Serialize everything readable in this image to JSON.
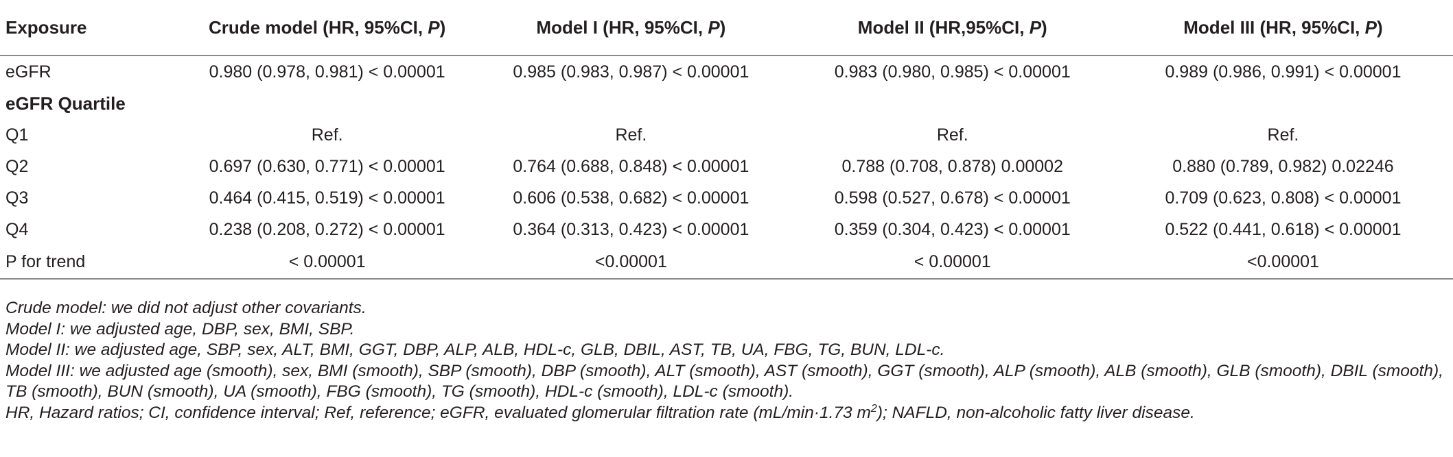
{
  "table": {
    "headers": {
      "exposure": "Exposure",
      "crude": {
        "pre": "Crude model (HR, 95%CI, ",
        "ital": "P",
        "post": ")"
      },
      "m1": {
        "pre": "Model I (HR, 95%CI, ",
        "ital": "P",
        "post": ")"
      },
      "m2": {
        "pre": "Model II (HR,95%CI, ",
        "ital": "P",
        "post": ")"
      },
      "m3": {
        "pre": "Model III (HR, 95%CI, ",
        "ital": "P",
        "post": ")"
      }
    },
    "rows": {
      "egfr": {
        "label": "eGFR",
        "crude": "0.980 (0.978, 0.981) < 0.00001",
        "m1": "0.985 (0.983, 0.987) < 0.00001",
        "m2": "0.983 (0.980, 0.985) < 0.00001",
        "m3": "0.989 (0.986, 0.991) < 0.00001"
      },
      "quartile_heading": "eGFR Quartile",
      "q1": {
        "label": "Q1",
        "crude": "Ref.",
        "m1": "Ref.",
        "m2": "Ref.",
        "m3": "Ref."
      },
      "q2": {
        "label": "Q2",
        "crude": "0.697 (0.630, 0.771) < 0.00001",
        "m1": "0.764 (0.688, 0.848) < 0.00001",
        "m2": "0.788 (0.708, 0.878) 0.00002",
        "m3": "0.880 (0.789, 0.982) 0.02246"
      },
      "q3": {
        "label": "Q3",
        "crude": "0.464 (0.415, 0.519) < 0.00001",
        "m1": "0.606 (0.538, 0.682) < 0.00001",
        "m2": "0.598 (0.527, 0.678) < 0.00001",
        "m3": "0.709 (0.623, 0.808) < 0.00001"
      },
      "q4": {
        "label": "Q4",
        "crude": "0.238 (0.208, 0.272) < 0.00001",
        "m1": "0.364 (0.313, 0.423) < 0.00001",
        "m2": "0.359 (0.304, 0.423) < 0.00001",
        "m3": "0.522 (0.441, 0.618) < 0.00001"
      },
      "trend": {
        "label": "P for trend",
        "crude": "< 0.00001",
        "m1": "<0.00001",
        "m2": "< 0.00001",
        "m3": "<0.00001"
      }
    }
  },
  "notes": {
    "crude": "Crude model: we did not adjust other covariants.",
    "m1": "Model I: we adjusted age, DBP, sex, BMI, SBP.",
    "m2": "Model II: we adjusted age, SBP, sex, ALT, BMI, GGT, DBP, ALP, ALB, HDL-c, GLB, DBIL, AST, TB, UA, FBG, TG, BUN, LDL-c.",
    "m3": "Model III: we adjusted age (smooth), sex, BMI (smooth), SBP (smooth), DBP (smooth), ALT (smooth), AST (smooth), GGT (smooth), ALP (smooth), ALB (smooth), GLB (smooth), DBIL (smooth), TB (smooth), BUN (smooth), UA (smooth), FBG (smooth), TG (smooth), HDL-c (smooth), LDL-c (smooth).",
    "abbrev_pre": "HR, Hazard ratios; CI, confidence interval; Ref, reference; eGFR, evaluated glomerular filtration rate (mL/min·1.73 m",
    "abbrev_sup": "2",
    "abbrev_post": "); NAFLD, non-alcoholic fatty liver disease."
  }
}
